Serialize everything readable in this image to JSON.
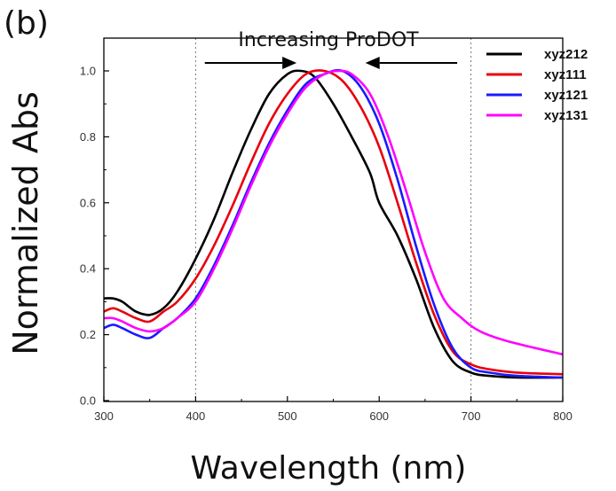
{
  "panel_label": "(b)",
  "chart_data": {
    "type": "line",
    "xlabel": "Wavelength (nm)",
    "ylabel": "Normalized Abs",
    "xlim": [
      300,
      800
    ],
    "ylim": [
      0,
      1.05
    ],
    "x_ticks": [
      300,
      400,
      500,
      600,
      700,
      800
    ],
    "y_ticks": [
      0.0,
      0.2,
      0.4,
      0.6,
      0.8,
      1.0
    ],
    "x_tick_labels": [
      "300",
      "400",
      "500",
      "600",
      "700",
      "800"
    ],
    "y_tick_labels": [
      "0.0",
      "0.2",
      "0.4",
      "0.6",
      "0.8",
      "1.0"
    ],
    "reference_lines_x": [
      400,
      700
    ],
    "grid": false,
    "legend_position": "top-right",
    "annotation": {
      "text": "Increasing ProDOT",
      "arrows": [
        {
          "direction": "right",
          "from_x": 410,
          "to_x": 510
        },
        {
          "direction": "left",
          "from_x": 685,
          "to_x": 585
        }
      ]
    },
    "series": [
      {
        "name": "xyz212",
        "color": "#000000",
        "x": [
          300,
          310,
          320,
          335,
          350,
          365,
          380,
          400,
          420,
          440,
          460,
          480,
          500,
          515,
          530,
          550,
          570,
          590,
          600,
          620,
          640,
          660,
          680,
          700,
          720,
          750,
          800
        ],
        "y": [
          0.31,
          0.31,
          0.3,
          0.27,
          0.26,
          0.28,
          0.33,
          0.43,
          0.55,
          0.69,
          0.82,
          0.93,
          0.99,
          1.0,
          0.98,
          0.9,
          0.8,
          0.69,
          0.6,
          0.5,
          0.37,
          0.22,
          0.12,
          0.085,
          0.075,
          0.07,
          0.07
        ]
      },
      {
        "name": "xyz111",
        "color": "#e8000b",
        "x": [
          300,
          310,
          320,
          335,
          350,
          365,
          380,
          400,
          420,
          440,
          460,
          480,
          500,
          520,
          540,
          560,
          580,
          600,
          620,
          640,
          660,
          680,
          700,
          720,
          750,
          800
        ],
        "y": [
          0.27,
          0.28,
          0.27,
          0.25,
          0.24,
          0.27,
          0.3,
          0.37,
          0.47,
          0.59,
          0.72,
          0.84,
          0.93,
          0.99,
          1.0,
          0.97,
          0.89,
          0.77,
          0.6,
          0.42,
          0.26,
          0.15,
          0.11,
          0.095,
          0.085,
          0.08
        ]
      },
      {
        "name": "xyz121",
        "color": "#1a1aff",
        "x": [
          300,
          310,
          320,
          335,
          350,
          365,
          380,
          400,
          420,
          440,
          460,
          480,
          500,
          520,
          540,
          560,
          580,
          600,
          620,
          640,
          660,
          680,
          700,
          720,
          750,
          800
        ],
        "y": [
          0.22,
          0.23,
          0.22,
          0.2,
          0.19,
          0.22,
          0.25,
          0.31,
          0.41,
          0.53,
          0.66,
          0.78,
          0.88,
          0.96,
          0.99,
          1.0,
          0.95,
          0.84,
          0.67,
          0.47,
          0.29,
          0.16,
          0.1,
          0.085,
          0.075,
          0.07
        ]
      },
      {
        "name": "xyz131",
        "color": "#ff00ff",
        "x": [
          300,
          310,
          320,
          335,
          350,
          365,
          380,
          400,
          420,
          440,
          460,
          480,
          500,
          520,
          540,
          555,
          570,
          590,
          610,
          630,
          650,
          670,
          690,
          710,
          740,
          800
        ],
        "y": [
          0.25,
          0.25,
          0.24,
          0.22,
          0.21,
          0.22,
          0.25,
          0.3,
          0.4,
          0.52,
          0.65,
          0.77,
          0.87,
          0.95,
          0.99,
          1.0,
          0.99,
          0.93,
          0.8,
          0.63,
          0.45,
          0.31,
          0.25,
          0.21,
          0.18,
          0.14
        ]
      }
    ]
  }
}
